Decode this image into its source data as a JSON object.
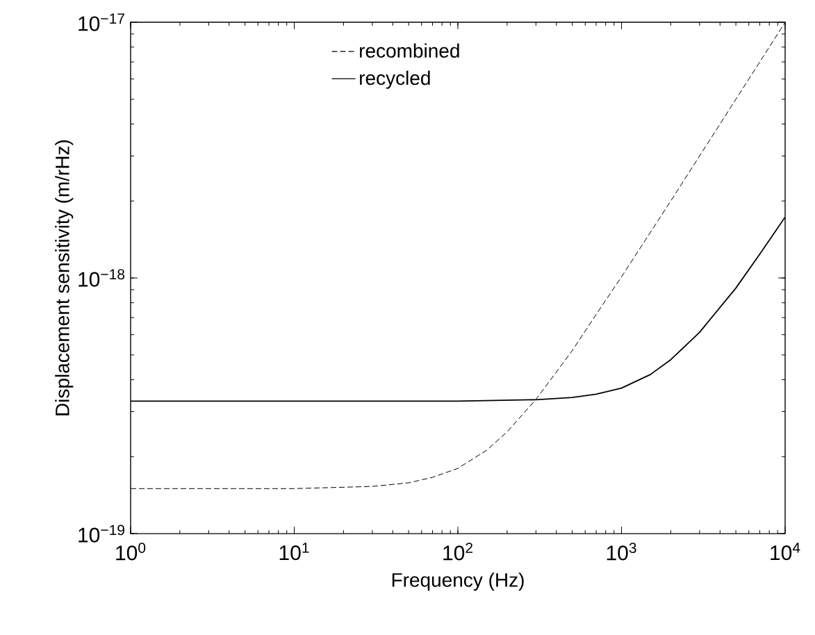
{
  "chart_data": {
    "type": "line",
    "xlabel": "Frequency (Hz)",
    "ylabel": "Displacement sensitivity (m/rHz)",
    "log": "xy",
    "xlim": [
      1,
      10000
    ],
    "ylim": [
      1e-19,
      1e-17
    ],
    "xticks": [
      {
        "value": 1,
        "label": "10$^{0}$"
      },
      {
        "value": 10,
        "label": "10$^{1}$"
      },
      {
        "value": 100,
        "label": "10$^{2}$"
      },
      {
        "value": 1000,
        "label": "10$^{3}$"
      },
      {
        "value": 10000,
        "label": "10$^{4}$"
      }
    ],
    "yticks": [
      {
        "value": 1e-19,
        "label": "10$^{−19}$"
      },
      {
        "value": 1e-18,
        "label": "10$^{−18}$"
      },
      {
        "value": 1e-17,
        "label": "10$^{−17}$"
      }
    ],
    "grid": false,
    "legend": "top left",
    "series": [
      {
        "name": "recombined",
        "color": "#000000",
        "line_style": "dashed",
        "x": [
          1,
          10,
          30,
          50,
          70,
          100,
          150,
          200,
          300,
          500,
          700,
          1000,
          2000,
          5000,
          10000
        ],
        "values": [
          1.5e-19,
          1.5e-19,
          1.53e-19,
          1.58e-19,
          1.66e-19,
          1.8e-19,
          2.12e-19,
          2.5e-19,
          3.35e-19,
          5.2e-19,
          7.2e-19,
          1.01e-18,
          2e-18,
          5e-18,
          1e-17
        ]
      },
      {
        "name": "recycled",
        "color": "#000000",
        "line_style": "solid",
        "x": [
          1,
          10,
          100,
          300,
          500,
          700,
          1000,
          1500,
          2000,
          3000,
          5000,
          7000,
          10000
        ],
        "values": [
          3.3e-19,
          3.3e-19,
          3.3e-19,
          3.34e-19,
          3.41e-19,
          3.51e-19,
          3.71e-19,
          4.19e-19,
          4.79e-19,
          6.13e-19,
          9.13e-19,
          1.24e-18,
          1.73e-18
        ]
      }
    ]
  }
}
